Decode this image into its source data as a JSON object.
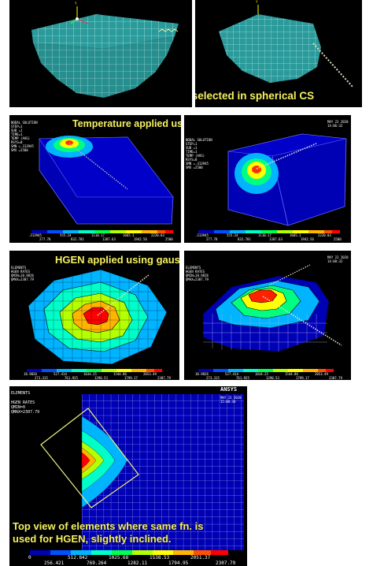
{
  "colors": {
    "caption": "#f5f060",
    "panel_bg": "#000000",
    "mesh_teal": "#2a9a9a",
    "deep_blue": "#0000b4",
    "legend_scale": [
      "#0000b4",
      "#0050ff",
      "#00b4ff",
      "#00ffc8",
      "#00ff50",
      "#b4ff00",
      "#ffff00",
      "#ffb400",
      "#ff5000",
      "#ff0000"
    ]
  },
  "panels": {
    "p1": {
      "labels": [
        "Y"
      ]
    },
    "p2": {
      "labels": [
        "Y"
      ],
      "caption": "Elements selected in spherical CS"
    },
    "p3": {
      "caption": "Temperature applied using gaussian distribution",
      "header": [
        "NODAL SOLUTION",
        "STEP=1",
        "SUB =1",
        "TIME=1",
        "TEMP (AVG)",
        "RSYS=0",
        "SMN =.313945",
        "SMX =2500"
      ],
      "legend_values": [
        ".313945",
        "277.78",
        "555.24",
        "832.701",
        "1110.17",
        "1387.63",
        "1665.1",
        "1942.56",
        "2220.03",
        "2500"
      ]
    },
    "p4": {
      "header": [
        "NODAL SOLUTION",
        "STEP=1",
        "SUB =1",
        "TIME=1",
        "TEMP (AVG)",
        "RSYS=0",
        "SMN =.313945",
        "SMX =2500"
      ],
      "date": [
        "MAY 23 2020",
        "14:06:32"
      ],
      "legend_values": [
        ".313945",
        "277.78",
        "555.24",
        "832.701",
        "1110.17",
        "1387.63",
        "1665.1",
        "1942.56",
        "2220.03",
        "2500"
      ]
    },
    "p5": {
      "caption": "HGEN applied using gaussian distribution",
      "header": [
        "ELEMENTS",
        "HGEN RATES",
        "QMIN=18.9826",
        "QMAX=2307.79"
      ],
      "legend_values": [
        "18.9826",
        "273.315",
        "527.414",
        "761.925",
        "1034.25",
        "1290.53",
        "1544.86",
        "1799.17",
        "2053.49",
        "2307.79"
      ]
    },
    "p6": {
      "header": [
        "ELEMENTS",
        "HGEN RATES",
        "QMIN=18.9826",
        "QMAX=2307.79"
      ],
      "date": [
        "MAY 23 2020",
        "14:08:32"
      ],
      "legend_values": [
        "18.9826",
        "273.315",
        "527.414",
        "761.925",
        "1034.25",
        "1290.53",
        "1544.86",
        "1799.17",
        "2053.49",
        "2307.79"
      ]
    },
    "p7": {
      "caption_lines": [
        "Top view of elements where same fn. is",
        "used for HGEN, slightly inclined."
      ],
      "header": [
        "ELEMENTS",
        "",
        "HGEN RATES",
        "QMIN=0",
        "QMAX=2307.79"
      ],
      "brand": "ANSYS",
      "date": [
        "MAY 23 2020",
        "15:08:34"
      ],
      "legend_top": [
        "0",
        "512.842",
        "1025.68",
        "1538.53",
        "2051.37"
      ],
      "legend_bottom": [
        "256.421",
        "769.264",
        "1282.11",
        "1794.95",
        "2307.79"
      ]
    }
  }
}
